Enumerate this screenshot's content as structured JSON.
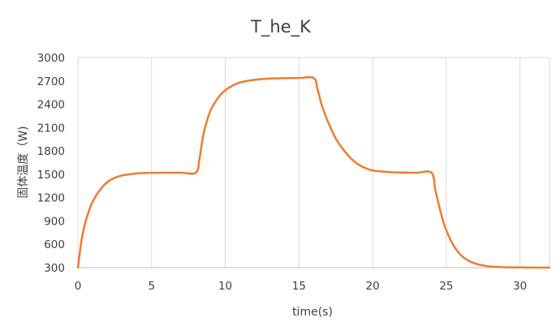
{
  "chart_data": {
    "type": "line",
    "title": "T_he_K",
    "xlabel": "time(s)",
    "ylabel": "固体温度（W)",
    "xlim": [
      0,
      32
    ],
    "ylim": [
      300,
      3000
    ],
    "x_ticks": [
      0,
      5,
      10,
      15,
      20,
      25,
      30
    ],
    "y_ticks": [
      300,
      600,
      900,
      1200,
      1500,
      1800,
      2100,
      2400,
      2700,
      3000
    ],
    "x_grid": true,
    "y_grid": false,
    "legend": "none",
    "series": [
      {
        "color": "#ED7D31",
        "x": [
          0,
          0.25,
          0.5,
          0.75,
          1,
          1.5,
          2,
          2.5,
          3,
          3.5,
          4,
          5,
          6,
          7,
          8,
          8.25,
          8.5,
          8.75,
          9,
          9.5,
          10,
          10.5,
          11,
          11.5,
          12,
          13,
          14,
          15,
          16,
          16.25,
          16.5,
          16.75,
          17,
          17.5,
          18,
          18.5,
          19,
          19.5,
          20,
          21,
          22,
          23,
          24,
          24.25,
          24.5,
          24.75,
          25,
          25.5,
          26,
          26.5,
          27,
          27.5,
          28,
          29,
          30,
          31,
          32
        ],
        "y": [
          300,
          660,
          880,
          1030,
          1150,
          1300,
          1400,
          1455,
          1485,
          1500,
          1510,
          1518,
          1520,
          1520,
          1520,
          1700,
          2000,
          2180,
          2320,
          2480,
          2580,
          2640,
          2680,
          2700,
          2715,
          2730,
          2735,
          2738,
          2738,
          2600,
          2420,
          2280,
          2160,
          1960,
          1820,
          1710,
          1630,
          1580,
          1550,
          1530,
          1522,
          1520,
          1520,
          1300,
          1100,
          920,
          780,
          580,
          460,
          390,
          350,
          328,
          315,
          305,
          302,
          300,
          300
        ]
      }
    ]
  }
}
